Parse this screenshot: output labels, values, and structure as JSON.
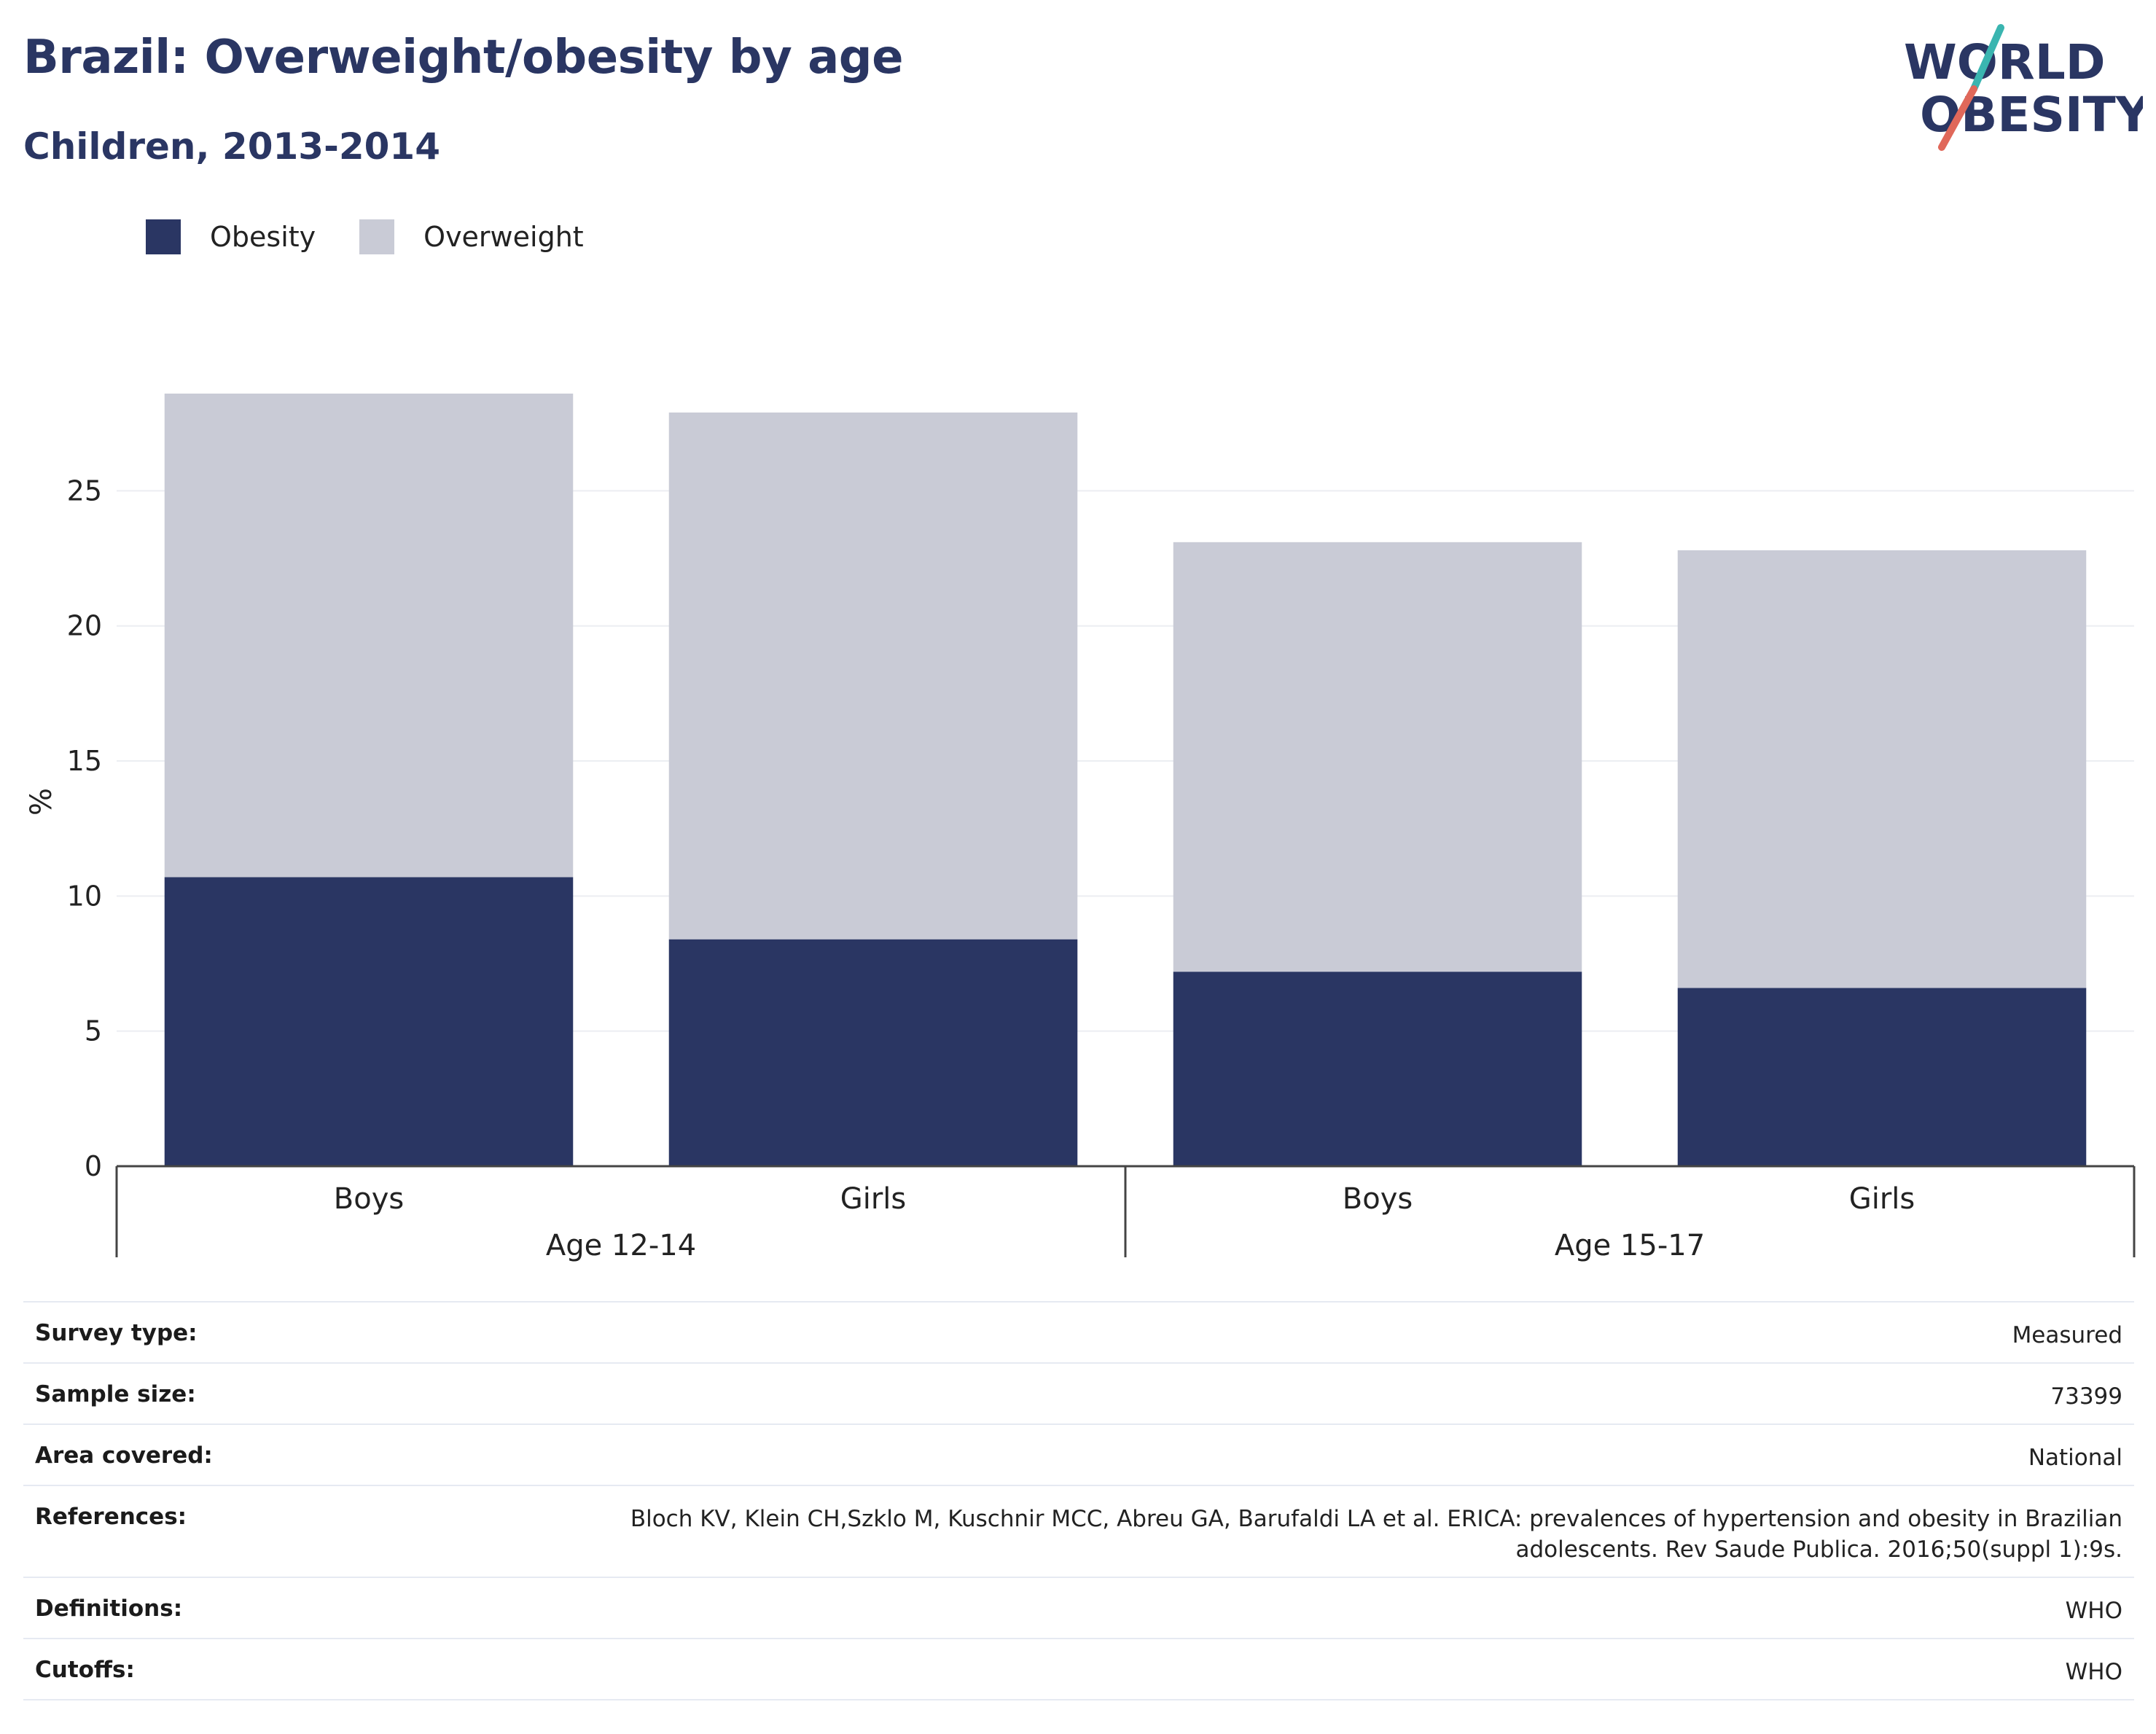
{
  "header": {
    "title": "Brazil: Overweight/obesity by age",
    "subtitle": "Children, 2013-2014"
  },
  "logo": {
    "line1": "WORLD",
    "line2": "OBESITY",
    "colors": {
      "text": "#2a3663",
      "slash_top": "#3ab5b0",
      "slash_bottom": "#e0685a"
    }
  },
  "colors": {
    "obesity": "#2a3663",
    "overweight": "#c9cbd6",
    "grid": "#eceef2",
    "axis": "#444444"
  },
  "chart_data": {
    "type": "bar",
    "stacked": true,
    "groups": [
      {
        "label": "Age 12-14",
        "categories": [
          "Boys",
          "Girls"
        ]
      },
      {
        "label": "Age 15-17",
        "categories": [
          "Boys",
          "Girls"
        ]
      }
    ],
    "series": [
      {
        "name": "Obesity",
        "values": [
          10.7,
          8.4,
          7.2,
          6.6
        ]
      },
      {
        "name": "Overweight",
        "values": [
          17.9,
          19.5,
          15.9,
          16.2
        ]
      }
    ],
    "ylabel": "%",
    "ylim": [
      0,
      28.6
    ],
    "yticks": [
      0,
      5,
      10,
      15,
      20,
      25
    ],
    "grid": true,
    "legend": "top-left"
  },
  "meta": [
    {
      "label": "Survey type:",
      "value": "Measured"
    },
    {
      "label": "Sample size:",
      "value": "73399"
    },
    {
      "label": "Area covered:",
      "value": "National"
    },
    {
      "label": "References:",
      "value": "Bloch KV, Klein CH,Szklo M, Kuschnir MCC, Abreu GA, Barufaldi LA et al. ERICA: prevalences of hypertension and obesity in Brazilian adolescents. Rev Saude Publica. 2016;50(suppl 1):9s."
    },
    {
      "label": "Definitions:",
      "value": "WHO"
    },
    {
      "label": "Cutoffs:",
      "value": "WHO"
    }
  ]
}
